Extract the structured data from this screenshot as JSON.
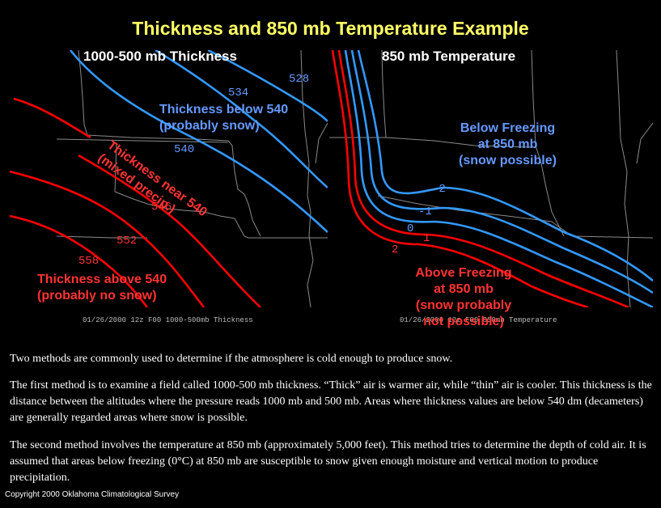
{
  "title": "Thickness and 850 mb Temperature Example",
  "left_panel": {
    "title": "1000-500 mb Thickness",
    "caption": "01/26/2000 12z F00 1000-500mb Thickness",
    "contour_labels": [
      "534",
      "528",
      "540",
      "546",
      "552",
      "558"
    ],
    "annotation_below": [
      "Thickness below 540",
      "(probably snow)"
    ],
    "annotation_near": [
      "Thickness near 540",
      "(mixed precip.)"
    ],
    "annotation_above": [
      "Thickness above 540",
      "(probably no snow)"
    ]
  },
  "right_panel": {
    "title": "850 mb Temperature",
    "caption": "01/26/2000 12z F00 850mb Temperature",
    "contour_labels": [
      "-2",
      "-1",
      "0",
      "1",
      "2"
    ],
    "annotation_below": [
      "Below Freezing",
      "at 850 mb",
      "(snow possible)"
    ],
    "annotation_above": [
      "Above Freezing",
      "at 850 mb",
      "(snow probably",
      "not possible)"
    ]
  },
  "paragraphs": [
    "Two methods are commonly used to determine if the atmosphere is cold enough to produce snow.",
    "The first method is to examine a field called 1000-500 mb thickness.  “Thick” air is warmer air, while “thin” air is cooler.  This thickness is the distance between the altitudes where the pressure reads 1000 mb and 500 mb.  Areas where thickness values are below 540 dm (decameters) are generally regarded areas where snow is possible.",
    "The second method involves the temperature at 850 mb (approximately 5,000 feet).  This method tries to determine the depth of cold air.  It is assumed that areas below freezing (0°C) at 850 mb are susceptible to snow given enough moisture and vertical motion to produce precipitation."
  ],
  "copyright": "Copyright 2000 Oklahoma Climatological Survey",
  "colors": {
    "cold": "#3399ff",
    "warm": "#ff0000",
    "title": "#ffff66",
    "border": "#888888"
  }
}
